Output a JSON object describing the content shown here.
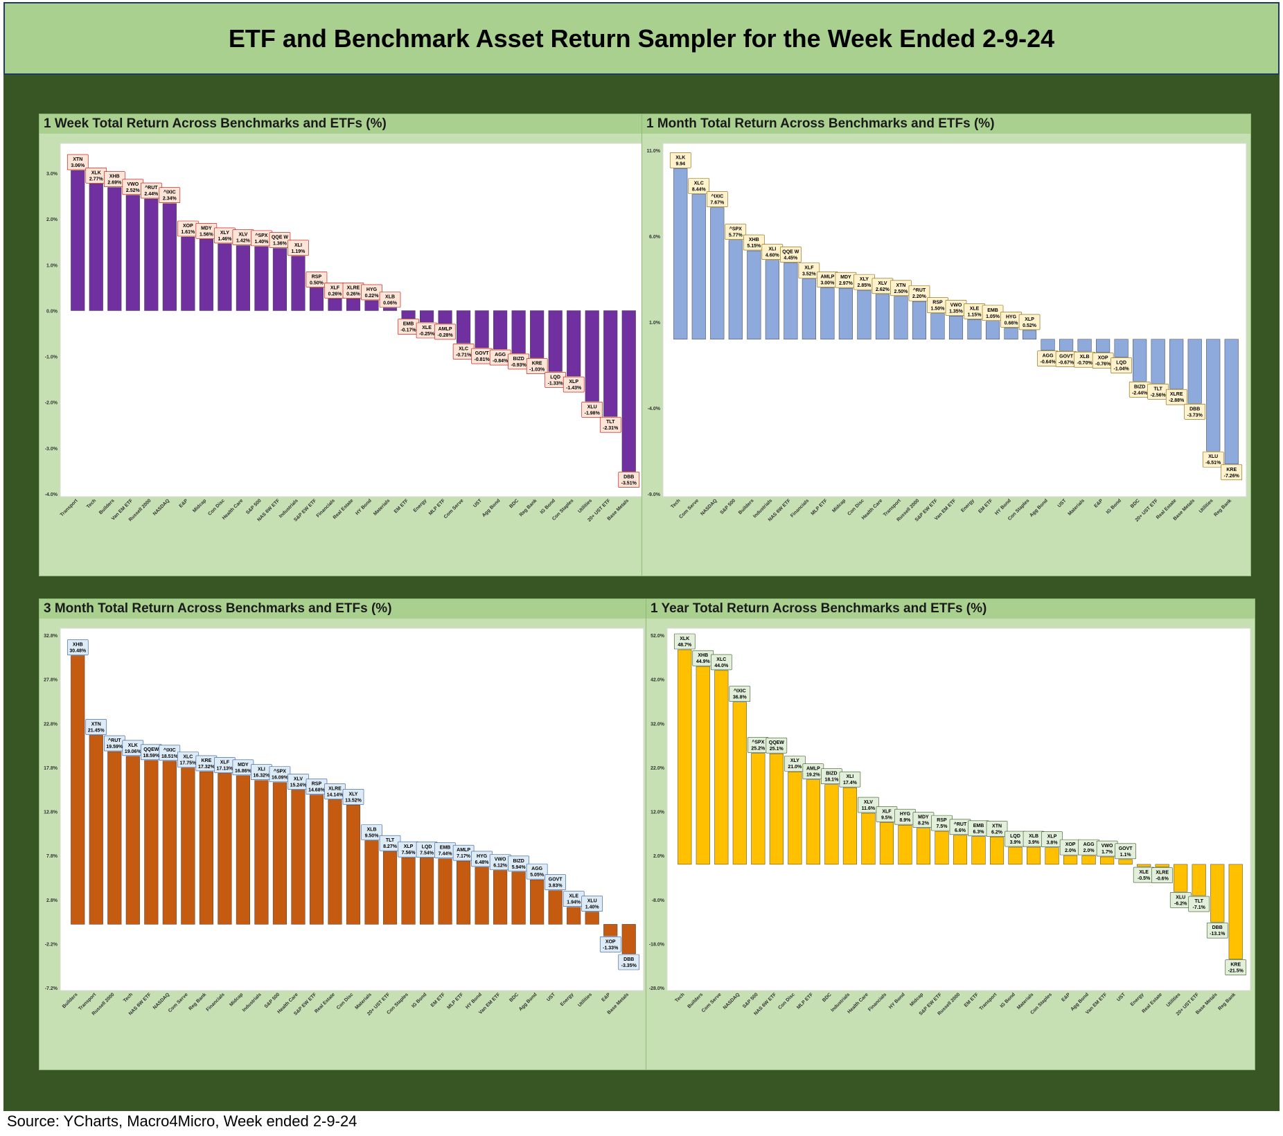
{
  "page": {
    "title": "ETF and Benchmark Asset Return Sampler for the Week Ended 2-9-24",
    "source": "Source: YCharts, Macro4Micro, Week ended 2-9-24"
  },
  "colors": {
    "title_bg": "#a9d08e",
    "frame_bg": "#375623",
    "panel_bg": "#c6e0b4",
    "week": "#7030a0",
    "month": "#8ea9db",
    "three_month": "#c55a11",
    "year": "#ffc000"
  },
  "chart_data": [
    {
      "type": "bar",
      "title": "1 Week Total Return Across Benchmarks and ETFs (%)",
      "color": "#7030a0",
      "label_bg": "#fce4d6",
      "label_border": "#c00000",
      "ylim": [
        -4.0,
        3.5
      ],
      "yticks": [
        "3.0%",
        "2.0%",
        "1.0%",
        "0.0%",
        "-1.0%",
        "-2.0%",
        "-3.0%",
        "-4.0%"
      ],
      "ytick_values": [
        3,
        2,
        1,
        0,
        -1,
        -2,
        -3,
        -4
      ],
      "categories": [
        "Transport",
        "Tech",
        "Builders",
        "Van EM ETF",
        "Russell 2000",
        "NASDAQ",
        "E&P",
        "Midcap",
        "Con Disc",
        "Health Care",
        "S&P 500",
        "NAS 6W ETF",
        "Industrials",
        "S&P EW ETF",
        "Financials",
        "Real Estate",
        "HY Bond",
        "Materials",
        "EM ETF",
        "Energy",
        "MLP ETF",
        "Com Serve",
        "UST",
        "Agg Bond",
        "BDC",
        "Reg Bank",
        "IG Bond",
        "Con Staples",
        "Utilities",
        "20+ UST ETF",
        "Base Metals"
      ],
      "tickers": [
        "XTN",
        "XLK",
        "XHB",
        "VWO",
        "^RUT",
        "^IXIC",
        "XOP",
        "MDY",
        "XLY",
        "XLV",
        "^SPX",
        "QQE W",
        "XLI",
        "RSP",
        "XLF",
        "XLRE",
        "HYG",
        "XLB",
        "EMB",
        "XLE",
        "AMLP",
        "XLC",
        "GOVT",
        "AGG",
        "BIZD",
        "KRE",
        "LQD",
        "XLP",
        "XLU",
        "TLT",
        "DBB"
      ],
      "value_labels": [
        "3.06%",
        "2.77%",
        "2.69%",
        "2.52%",
        "2.44%",
        "2.34%",
        "1.61%",
        "1.56%",
        "1.46%",
        "1.42%",
        "1.40%",
        "1.36%",
        "1.19%",
        "0.50%",
        "0.26%",
        "0.26%",
        "0.22%",
        "0.06%",
        "-0.17%",
        "-0.25%",
        "-0.28%",
        "-0.71%",
        "-0.81%",
        "-0.84%",
        "-0.93%",
        "-1.03%",
        "-1.33%",
        "-1.43%",
        "-1.98%",
        "-2.31%",
        "-3.51%"
      ],
      "values": [
        3.06,
        2.77,
        2.69,
        2.52,
        2.44,
        2.34,
        1.61,
        1.56,
        1.46,
        1.42,
        1.4,
        1.36,
        1.19,
        0.5,
        0.26,
        0.26,
        0.22,
        0.06,
        -0.17,
        -0.25,
        -0.28,
        -0.71,
        -0.81,
        -0.84,
        -0.93,
        -1.03,
        -1.33,
        -1.43,
        -1.98,
        -2.31,
        -3.51
      ]
    },
    {
      "type": "bar",
      "title": "1 Month Total Return Across Benchmarks and ETFs (%)",
      "color": "#8ea9db",
      "label_bg": "#fff2cc",
      "label_border": "#7f6000",
      "ylim": [
        -9.0,
        11.0
      ],
      "yticks": [
        "11.0%",
        "6.0%",
        "1.0%",
        "-4.0%",
        "-9.0%"
      ],
      "ytick_values": [
        11,
        6,
        1,
        -4,
        -9
      ],
      "categories": [
        "Tech",
        "Com Serve",
        "NASDAQ",
        "S&P 500",
        "Builders",
        "Industrials",
        "NAS 6W ETF",
        "Financials",
        "MLP ETF",
        "Midcap",
        "Con Disc",
        "Health Care",
        "Transport",
        "Russell 2000",
        "S&P EW ETF",
        "Van EM ETF",
        "Energy",
        "EM ETF",
        "HY Bond",
        "Con Staples",
        "Agg Bond",
        "UST",
        "Materials",
        "E&P",
        "IG Bond",
        "BDC",
        "20+ UST ETF",
        "Real Estate",
        "Base Metals",
        "Utilities",
        "Reg Bank"
      ],
      "tickers": [
        "XLK",
        "XLC",
        "^IXIC",
        "^SPX",
        "XHB",
        "XLI",
        "QQE W",
        "XLF",
        "AMLP",
        "MDY",
        "XLY",
        "XLV",
        "XTN",
        "^RUT",
        "RSP",
        "VWO",
        "XLE",
        "EMB",
        "HYG",
        "XLP",
        "AGG",
        "GOVT",
        "XLB",
        "XOP",
        "LQD",
        "BIZD",
        "TLT",
        "XLRE",
        "DBB",
        "XLU",
        "KRE"
      ],
      "value_labels": [
        "9.94",
        "8.44%",
        "7.67%",
        "5.77%",
        "5.15%",
        "4.60%",
        "4.45%",
        "3.52%",
        "3.00%",
        "2.97%",
        "2.85%",
        "2.62%",
        "2.50%",
        "2.20%",
        "1.50%",
        "1.35%",
        "1.15%",
        "1.05%",
        "0.66%",
        "0.52%",
        "-0.64%",
        "-0.67%",
        "-0.70%",
        "-0.76%",
        "-1.04%",
        "-2.44%",
        "-2.56%",
        "-2.88%",
        "-3.73%",
        "-6.51%",
        "-7.26%"
      ],
      "values": [
        9.94,
        8.44,
        7.67,
        5.77,
        5.15,
        4.6,
        4.45,
        3.52,
        3.0,
        2.97,
        2.85,
        2.62,
        2.5,
        2.2,
        1.5,
        1.35,
        1.15,
        1.05,
        0.66,
        0.52,
        -0.64,
        -0.67,
        -0.7,
        -0.76,
        -1.04,
        -2.44,
        -2.56,
        -2.88,
        -3.73,
        -6.51,
        -7.26
      ]
    },
    {
      "type": "bar",
      "title": "3 Month Total Return Across Benchmarks and ETFs (%)",
      "color": "#c55a11",
      "label_bg": "#ddebf7",
      "label_border": "#2f5597",
      "ylim": [
        -7.2,
        32.8
      ],
      "yticks": [
        "32.8%",
        "27.8%",
        "22.8%",
        "17.8%",
        "12.8%",
        "7.8%",
        "2.8%",
        "-2.2%",
        "-7.2%"
      ],
      "ytick_values": [
        32.8,
        27.8,
        22.8,
        17.8,
        12.8,
        7.8,
        2.8,
        -2.2,
        -7.2
      ],
      "categories": [
        "Builders",
        "Transport",
        "Russell 2000",
        "Tech",
        "NAS 6W ETF",
        "NASDAQ",
        "Com Serve",
        "Reg Bank",
        "Financials",
        "Midcap",
        "Industrials",
        "S&P 500",
        "Health Care",
        "S&P EW ETF",
        "Real Estate",
        "Con Disc",
        "Materials",
        "20+ UST ETF",
        "Con Staples",
        "IG Bond",
        "EM ETF",
        "MLP ETF",
        "HY Bond",
        "Van EM ETF",
        "BDC",
        "Agg Bond",
        "UST",
        "Energy",
        "Utilities",
        "E&P",
        "Base Metals"
      ],
      "tickers": [
        "XHB",
        "XTN",
        "^RUT",
        "XLK",
        "QQEW",
        "^IXIC",
        "XLC",
        "KRE",
        "XLF",
        "MDY",
        "XLI",
        "^SPX",
        "XLV",
        "RSP",
        "XLRE",
        "XLY",
        "XLB",
        "TLT",
        "XLP",
        "LQD",
        "EMB",
        "AMLP",
        "HYG",
        "VWO",
        "BIZD",
        "AGG",
        "GOVT",
        "XLE",
        "XLU",
        "XOP",
        "DBB"
      ],
      "value_labels": [
        "30.48%",
        "21.45%",
        "19.59%",
        "19.06%",
        "18.59%",
        "18.51%",
        "17.75%",
        "17.32%",
        "17.13%",
        "16.86%",
        "16.32%",
        "16.09%",
        "15.24%",
        "14.68%",
        "14.14%",
        "13.52%",
        "9.50%",
        "8.27%",
        "7.56%",
        "7.54%",
        "7.44%",
        "7.17%",
        "6.48%",
        "6.12%",
        "5.94%",
        "5.05%",
        "3.83%",
        "1.94%",
        "1.40%",
        "-1.33%",
        "-3.35%"
      ],
      "values": [
        30.48,
        21.45,
        19.59,
        19.06,
        18.59,
        18.51,
        17.75,
        17.32,
        17.13,
        16.86,
        16.32,
        16.09,
        15.24,
        14.68,
        14.14,
        13.52,
        9.5,
        8.27,
        7.56,
        7.54,
        7.44,
        7.17,
        6.48,
        6.12,
        5.94,
        5.05,
        3.83,
        1.94,
        1.4,
        -1.33,
        -3.35
      ]
    },
    {
      "type": "bar",
      "title": "1 Year Total Return Across Benchmarks and ETFs (%)",
      "color": "#ffc000",
      "label_bg": "#e2efda",
      "label_border": "#375623",
      "ylim": [
        -28.0,
        52.0
      ],
      "yticks": [
        "52.0%",
        "42.0%",
        "32.0%",
        "22.0%",
        "12.0%",
        "2.0%",
        "-8.0%",
        "-18.0%",
        "-28.0%"
      ],
      "ytick_values": [
        52,
        42,
        32,
        22,
        12,
        2,
        -8,
        -18,
        -28
      ],
      "categories": [
        "Tech",
        "Builders",
        "Com Serve",
        "NASDAQ",
        "S&P 500",
        "NAS 6W ETF",
        "Con Disc",
        "MLP ETF",
        "BDC",
        "Industrials",
        "Health Care",
        "Financials",
        "HY Bond",
        "Midcap",
        "S&P EW ETF",
        "Russell 2000",
        "EM ETF",
        "Transport",
        "IG Bond",
        "Materials",
        "Con Staples",
        "E&P",
        "Agg Bond",
        "Van EM ETF",
        "UST",
        "Energy",
        "Real Estate",
        "Utilities",
        "20+ UST ETF",
        "Base Metals",
        "Reg Bank"
      ],
      "tickers": [
        "XLK",
        "XHB",
        "XLC",
        "^IXIC",
        "^SPX",
        "QQEW",
        "XLY",
        "AMLP",
        "BIZD",
        "XLI",
        "XLV",
        "XLF",
        "HYG",
        "MDY",
        "RSP",
        "^RUT",
        "EMB",
        "XTN",
        "LQD",
        "XLB",
        "XLP",
        "XOP",
        "AGG",
        "VWO",
        "GOVT",
        "XLE",
        "XLRE",
        "XLU",
        "TLT",
        "DBB",
        "KRE"
      ],
      "value_labels": [
        "48.7%",
        "44.9%",
        "44.0%",
        "36.8%",
        "25.2%",
        "25.1%",
        "21.0%",
        "19.2%",
        "18.1%",
        "17.4%",
        "11.6%",
        "9.5%",
        "8.9%",
        "8.2%",
        "7.5%",
        "6.6%",
        "6.3%",
        "6.2%",
        "3.9%",
        "3.9%",
        "3.8%",
        "2.0%",
        "2.0%",
        "1.7%",
        "1.1%",
        "-0.5%",
        "-0.6%",
        "-6.2%",
        "-7.1%",
        "-13.1%",
        "-21.5%"
      ],
      "values": [
        48.7,
        44.9,
        44.0,
        36.8,
        25.2,
        25.1,
        21.0,
        19.2,
        18.1,
        17.4,
        11.6,
        9.5,
        8.9,
        8.2,
        7.5,
        6.6,
        6.3,
        6.2,
        3.9,
        3.9,
        3.8,
        2.0,
        2.0,
        1.7,
        1.1,
        -0.5,
        -0.6,
        -6.2,
        -7.1,
        -13.1,
        -21.5
      ]
    }
  ]
}
